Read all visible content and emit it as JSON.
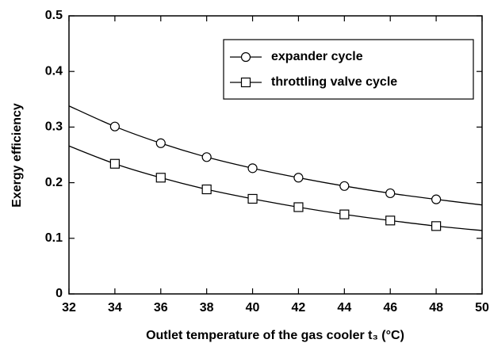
{
  "chart_data": {
    "type": "line",
    "xlabel": "Outlet temperature of the gas cooler t₃ (°C)",
    "ylabel": "Exergy efficiency",
    "x": [
      32,
      34,
      36,
      38,
      40,
      42,
      44,
      46,
      48,
      50
    ],
    "series": [
      {
        "name": "expander cycle",
        "color": "#000000",
        "marker": "circle",
        "values": [
          0.338,
          0.301,
          0.271,
          0.246,
          0.226,
          0.209,
          0.194,
          0.181,
          0.17,
          0.16
        ]
      },
      {
        "name": "throttling valve cycle",
        "color": "#000000",
        "marker": "square",
        "values": [
          0.266,
          0.234,
          0.209,
          0.188,
          0.171,
          0.156,
          0.143,
          0.132,
          0.122,
          0.114
        ]
      }
    ],
    "xlim": [
      32,
      50
    ],
    "xticks": [
      32,
      34,
      36,
      38,
      40,
      42,
      44,
      46,
      48,
      50
    ],
    "ylim": [
      0,
      0.5
    ],
    "yticks": [
      0,
      0.1,
      0.2,
      0.3,
      0.4,
      0.5
    ],
    "grid": false,
    "legend": "upper right"
  }
}
